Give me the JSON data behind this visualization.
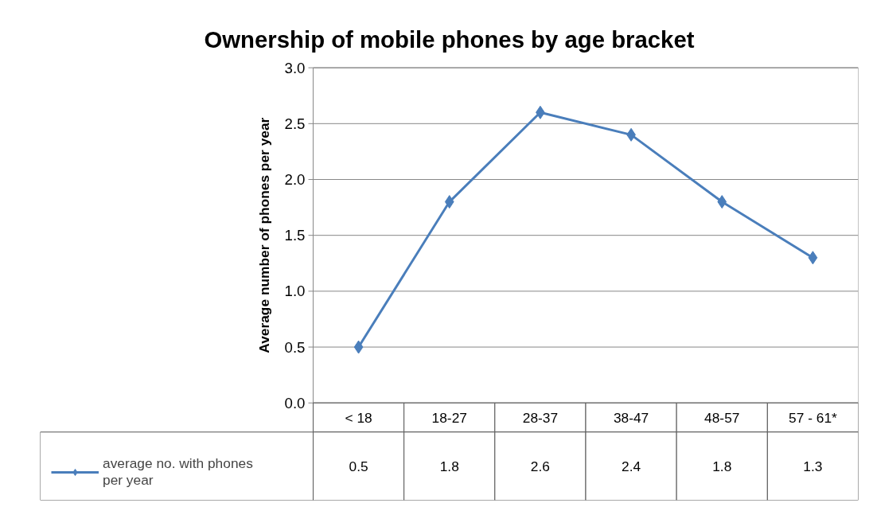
{
  "chart_data": {
    "type": "line",
    "title": "Ownership of mobile phones by age bracket",
    "ylabel": "Average number of phones per year",
    "categories": [
      "< 18",
      "18-27",
      "28-37",
      "38-47",
      "48-57",
      "57 - 61*"
    ],
    "series": [
      {
        "name": "average no. with phones per year",
        "color": "#4a7ebb",
        "values": [
          0.5,
          1.8,
          2.6,
          2.4,
          1.8,
          1.3
        ]
      }
    ],
    "ylim": [
      0,
      3
    ],
    "yticks": [
      {
        "value": 0,
        "label": "0.0"
      },
      {
        "value": 0.5,
        "label": "0.5"
      },
      {
        "value": 1,
        "label": "1.0"
      },
      {
        "value": 1.5,
        "label": "1.5"
      },
      {
        "value": 2,
        "label": "2.0"
      },
      {
        "value": 2.5,
        "label": "2.5"
      },
      {
        "value": 3,
        "label": "3.0"
      }
    ],
    "grid": "y",
    "marker": "diamond",
    "line_style": "solid",
    "data_labels": true,
    "legend": "bottom left"
  }
}
